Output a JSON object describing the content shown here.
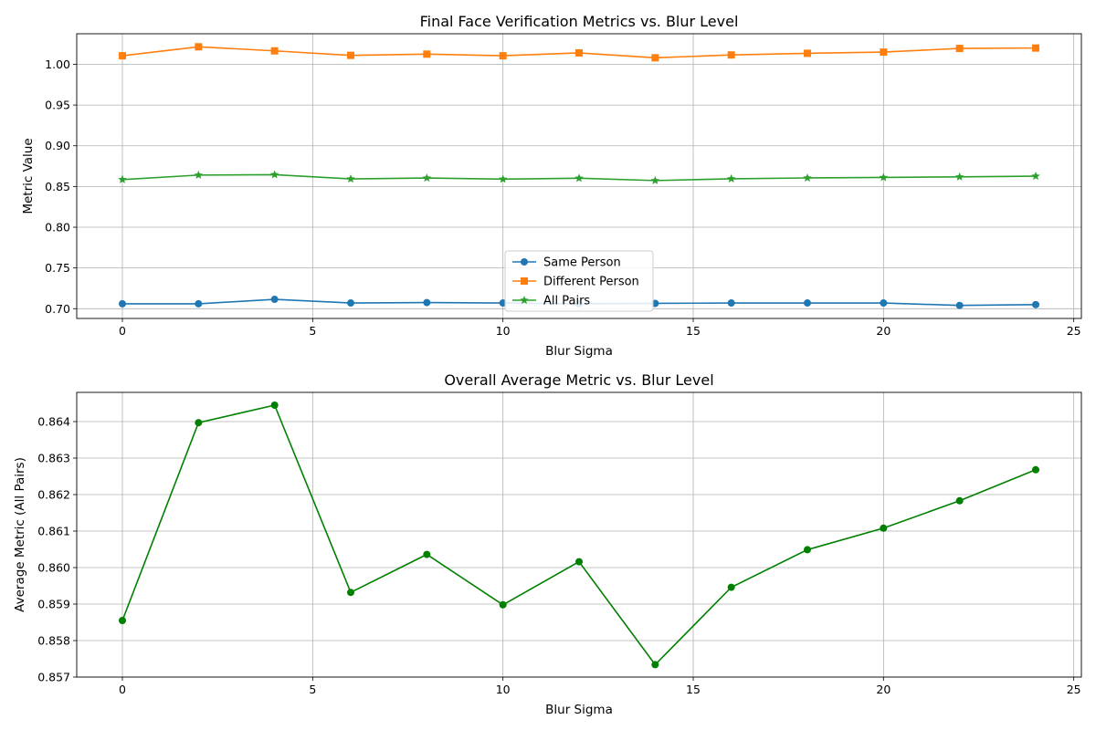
{
  "chart_data": [
    {
      "type": "line",
      "title": "Final Face Verification Metrics vs. Blur Level",
      "xlabel": "Blur Sigma",
      "ylabel": "Metric Value",
      "x": [
        0,
        2,
        4,
        6,
        8,
        10,
        12,
        14,
        16,
        18,
        20,
        22,
        24
      ],
      "xlim": [
        -1.2,
        25.2
      ],
      "ylim": [
        0.688,
        1.0375
      ],
      "xticks": [
        0,
        5,
        10,
        15,
        20,
        25
      ],
      "yticks": [
        0.7,
        0.75,
        0.8,
        0.85,
        0.9,
        0.95,
        1.0
      ],
      "grid": true,
      "legend": "lower-center",
      "series": [
        {
          "name": "Same Person",
          "color": "#1f77b4",
          "marker": "circle",
          "values": [
            0.706,
            0.706,
            0.7115,
            0.707,
            0.7075,
            0.707,
            0.706,
            0.7065,
            0.707,
            0.707,
            0.707,
            0.704,
            0.705
          ]
        },
        {
          "name": "Different Person",
          "color": "#ff7f0e",
          "marker": "square",
          "values": [
            1.0105,
            1.0215,
            1.0165,
            1.011,
            1.0125,
            1.0105,
            1.014,
            1.008,
            1.0115,
            1.0135,
            1.015,
            1.0195,
            1.02
          ]
        },
        {
          "name": "All Pairs",
          "color": "#2ca02c",
          "marker": "star",
          "values": [
            0.8585,
            0.864,
            0.8645,
            0.8593,
            0.8604,
            0.859,
            0.8602,
            0.8573,
            0.8595,
            0.8605,
            0.8611,
            0.8618,
            0.8627
          ]
        }
      ]
    },
    {
      "type": "line",
      "title": "Overall Average Metric vs. Blur Level",
      "xlabel": "Blur Sigma",
      "ylabel": "Average Metric (All Pairs)",
      "x": [
        0,
        2,
        4,
        6,
        8,
        10,
        12,
        14,
        16,
        18,
        20,
        22,
        24
      ],
      "xlim": [
        -1.2,
        25.2
      ],
      "ylim": [
        0.857,
        0.8648
      ],
      "xticks": [
        0,
        5,
        10,
        15,
        20,
        25
      ],
      "yticks": [
        0.857,
        0.858,
        0.859,
        0.86,
        0.861,
        0.862,
        0.863,
        0.864
      ],
      "grid": true,
      "legend": "none",
      "series": [
        {
          "color": "#008000",
          "marker": "circle",
          "values": [
            0.85855,
            0.86397,
            0.86445,
            0.85932,
            0.86036,
            0.85898,
            0.86016,
            0.85734,
            0.85946,
            0.86049,
            0.86108,
            0.86183,
            0.86268
          ]
        }
      ]
    }
  ]
}
